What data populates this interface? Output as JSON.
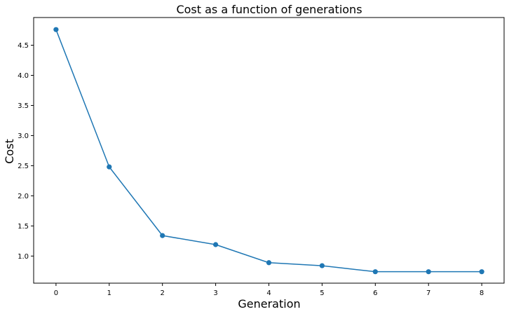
{
  "chart_data": {
    "type": "line",
    "title": "Cost as a function of generations",
    "xlabel": "Generation",
    "ylabel": "Cost",
    "x": [
      0,
      1,
      2,
      3,
      4,
      5,
      6,
      7,
      8
    ],
    "series": [
      {
        "values": [
          4.76,
          2.48,
          1.34,
          1.19,
          0.89,
          0.84,
          0.74,
          0.74,
          0.74
        ],
        "color": "#1f77b4",
        "marker": "circle"
      }
    ],
    "xlim": [
      -0.42,
      8.42
    ],
    "ylim": [
      0.55,
      4.96
    ],
    "xticks": [
      "0",
      "1",
      "2",
      "3",
      "4",
      "5",
      "6",
      "7",
      "8"
    ],
    "yticks": [
      "1.0",
      "1.5",
      "2.0",
      "2.5",
      "3.0",
      "3.5",
      "4.0",
      "4.5"
    ],
    "grid": false,
    "legend": false
  }
}
